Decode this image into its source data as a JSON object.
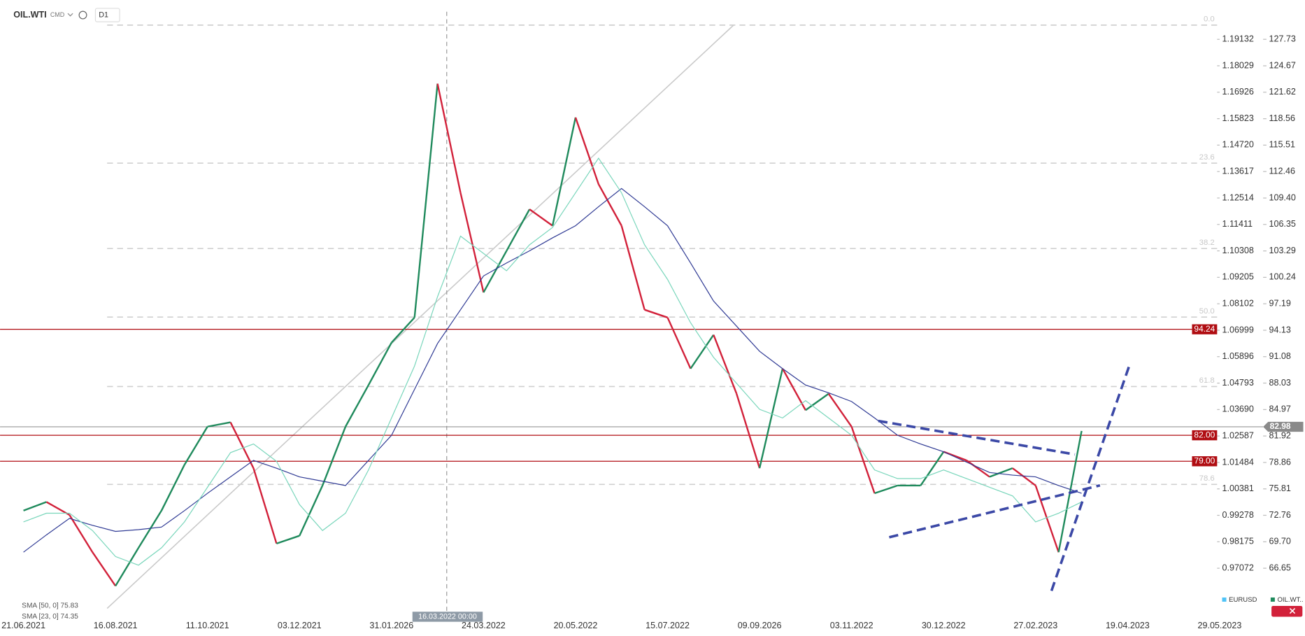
{
  "toolbar": {
    "symbol": "OIL.WTI",
    "market": "CMD",
    "interval": "D1"
  },
  "legend": {
    "sma_50": "SMA [50, 0] 75.83",
    "sma_23": "SMA [23, 0] 74.35",
    "instrument_1": "EURUSD",
    "instrument_2": "OIL.WT.."
  },
  "crosshair": {
    "label": "16.03.2022 00:00"
  },
  "chart_data": {
    "type": "line",
    "categories": [
      "21.06.2021",
      null,
      null,
      null,
      "16.08.2021",
      null,
      null,
      null,
      "11.10.2021",
      null,
      null,
      null,
      "03.12.2021",
      null,
      null,
      null,
      "31.01.2026",
      null,
      null,
      null,
      "24.03.2022",
      null,
      null,
      null,
      "20.05.2022",
      null,
      null,
      null,
      "15.07.2022",
      null,
      null,
      null,
      "09.09.2026",
      null,
      null,
      null,
      "03.11.2022",
      null,
      null,
      null,
      "30.12.2022",
      null,
      null,
      null,
      "27.02.2023",
      null,
      null,
      null,
      "19.04.2023",
      null,
      null,
      null,
      "29.05.2023"
    ],
    "series": [
      {
        "name": "OIL.WTI",
        "up_color": "#1f8a5c",
        "down_color": "#d2213a",
        "values": [
          73.3,
          74.3,
          72.8,
          68.5,
          64.6,
          69.0,
          73.3,
          78.6,
          83.0,
          83.5,
          78.2,
          69.5,
          70.4,
          76.2,
          83.0,
          87.8,
          92.7,
          95.6,
          122.6,
          110.0,
          98.5,
          103.3,
          108.1,
          106.2,
          118.7,
          111.0,
          106.2,
          96.5,
          95.6,
          89.7,
          93.6,
          86.8,
          78.2,
          89.7,
          84.9,
          86.8,
          83.0,
          75.3,
          76.2,
          76.2,
          80.1,
          79.1,
          77.2,
          78.2,
          76.2,
          68.5,
          82.5,
          null,
          null,
          null,
          null,
          null,
          null
        ]
      },
      {
        "name": "SMA 50",
        "color": "#2f3a94",
        "values": [
          68.5,
          70.5,
          72.4,
          71.6,
          70.9,
          71.1,
          71.4,
          73.3,
          75.3,
          77.2,
          79.1,
          78.2,
          77.2,
          76.7,
          76.2,
          79.1,
          82.0,
          87.3,
          92.6,
          96.5,
          100.4,
          101.9,
          103.3,
          104.8,
          106.2,
          108.4,
          110.5,
          108.4,
          106.2,
          101.9,
          97.5,
          94.6,
          91.7,
          89.7,
          87.8,
          86.9,
          85.9,
          84.0,
          82.0,
          81.0,
          80.1,
          78.9,
          77.7,
          77.4,
          77.2,
          76.2,
          75.3,
          null,
          null,
          null,
          null,
          null,
          null
        ]
      },
      {
        "name": "SMA 23",
        "color": "#79d6bb",
        "values": [
          72,
          73,
          73,
          71,
          68,
          67,
          69,
          72,
          76,
          80,
          81,
          79,
          74,
          71,
          73,
          78,
          84,
          90,
          98,
          105,
          103,
          101,
          104,
          106,
          110,
          114,
          110,
          104,
          100,
          95,
          91,
          88,
          85,
          84,
          86,
          84,
          82,
          78,
          77,
          77,
          78,
          77,
          76,
          75,
          72,
          73,
          74.3,
          null,
          null,
          null,
          null,
          null,
          null
        ]
      }
    ],
    "ylim": [
      61.72,
      129.37
    ],
    "yticks": [
      127.73,
      124.67,
      121.62,
      118.56,
      115.51,
      112.46,
      {
        "value": 109.4,
        "label": "109.40"
      },
      106.35,
      103.29,
      100.24,
      97.19,
      94.13,
      91.08,
      88.03,
      84.97,
      81.92,
      78.86,
      75.81,
      72.76,
      {
        "value": 69.7,
        "label": "69.70"
      },
      66.65
    ],
    "y2lim": [
      0.95292,
      1.19725
    ],
    "y2ticks": [
      1.19132,
      1.18029,
      1.16926,
      1.15823,
      {
        "value": 1.1472,
        "label": "1.14720"
      },
      1.13617,
      1.12514,
      1.11411,
      1.10308,
      1.09205,
      1.08102,
      1.06999,
      1.05896,
      1.04793,
      {
        "value": 1.0369,
        "label": "1.03690"
      },
      1.02587,
      1.01484,
      1.00381,
      0.99278,
      0.98175,
      0.97072
    ],
    "levels": [
      {
        "value": 94.24,
        "color": "#b00d12"
      },
      {
        "value": 82,
        "label": "82.00",
        "color": "#b00d12"
      },
      {
        "value": 79,
        "label": "79.00",
        "color": "#b00d12"
      }
    ],
    "current_price": {
      "value": 82.98,
      "color": "#8a8a8a"
    },
    "fib_levels": [
      {
        "label": "0.0",
        "price": 129.37
      },
      {
        "label": "23.6",
        "price": 113.43
      },
      {
        "label": "38.2",
        "price": 103.57
      },
      {
        "label": "50.0",
        "price": 95.65
      },
      {
        "label": "61.8",
        "price": 87.63
      },
      {
        "label": "78.6",
        "price": 76.33
      }
    ]
  }
}
